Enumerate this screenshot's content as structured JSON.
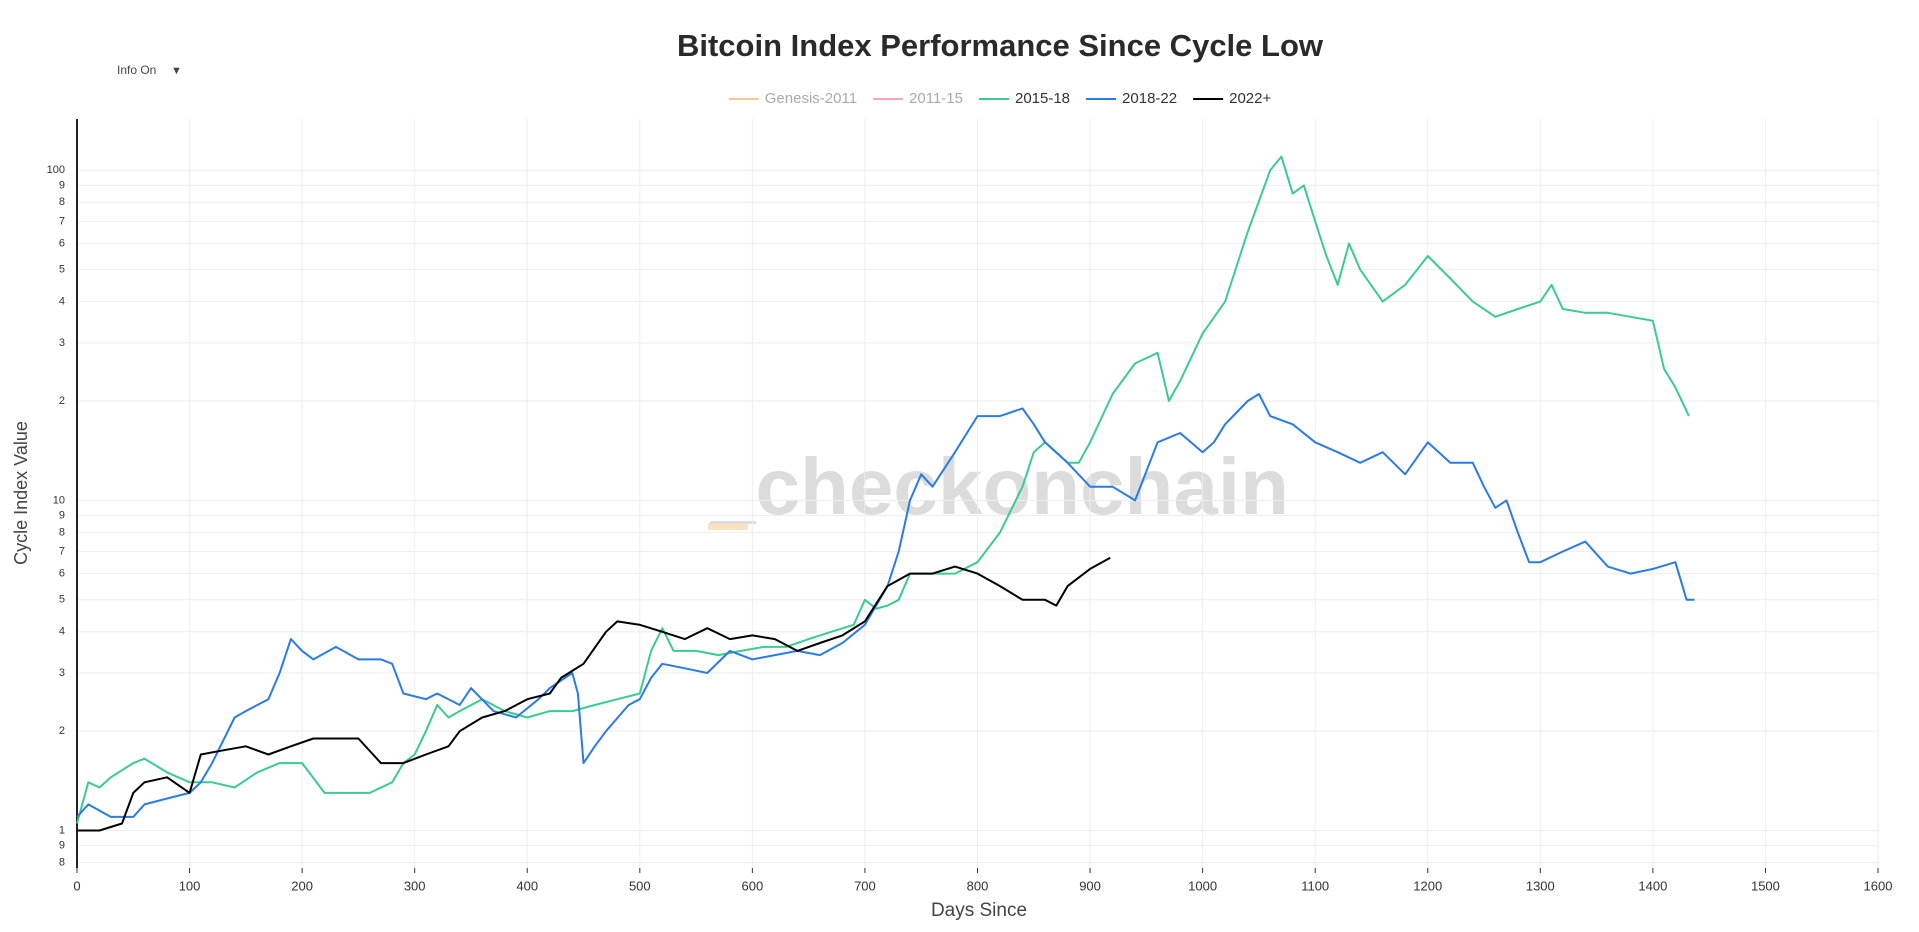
{
  "chart_data": {
    "type": "line",
    "title": "Bitcoin Index Performance Since Cycle Low",
    "control_label": "Info On",
    "control_icon": "▼",
    "watermark": "_checkonchain",
    "x_label": "Days Since",
    "y_label": "Cycle Index Value",
    "xlim": [
      0,
      1600
    ],
    "xticks": [
      0,
      100,
      200,
      300,
      400,
      500,
      600,
      700,
      800,
      900,
      1000,
      1100,
      1200,
      1300,
      1400,
      1500,
      1600
    ],
    "ylim": [
      0.77,
      143
    ],
    "log_y": true,
    "grid": true,
    "legend": "top",
    "yticks": [
      {
        "value": 0.8,
        "label": "8"
      },
      {
        "value": 0.9,
        "label": "9"
      },
      1,
      2,
      3,
      4,
      5,
      6,
      7,
      8,
      9,
      10,
      {
        "value": 20,
        "label": "2"
      },
      {
        "value": 30,
        "label": "3"
      },
      {
        "value": 40,
        "label": "4"
      },
      {
        "value": 50,
        "label": "5"
      },
      {
        "value": 60,
        "label": "6"
      },
      {
        "value": 70,
        "label": "7"
      },
      {
        "value": 80,
        "label": "8"
      },
      {
        "value": 90,
        "label": "9"
      },
      100
    ],
    "series": [
      {
        "name": "Genesis-2011",
        "color": "#f8c98e",
        "visible": false,
        "x": [],
        "values": []
      },
      {
        "name": "2011-15",
        "color": "#f4a6b8",
        "visible": false,
        "x": [],
        "values": []
      },
      {
        "name": "2015-18",
        "color": "#3ccb8e",
        "visible": true,
        "x": [
          0,
          10,
          20,
          30,
          50,
          60,
          80,
          100,
          120,
          140,
          160,
          180,
          200,
          220,
          240,
          260,
          280,
          290,
          300,
          310,
          320,
          330,
          340,
          360,
          380,
          400,
          420,
          440,
          460,
          480,
          500,
          510,
          520,
          530,
          550,
          570,
          590,
          610,
          630,
          650,
          670,
          690,
          700,
          710,
          720,
          730,
          740,
          760,
          780,
          800,
          820,
          840,
          850,
          860,
          870,
          880,
          890,
          900,
          920,
          940,
          960,
          970,
          980,
          1000,
          1020,
          1040,
          1060,
          1070,
          1080,
          1090,
          1100,
          1110,
          1120,
          1130,
          1140,
          1160,
          1180,
          1200,
          1220,
          1240,
          1260,
          1280,
          1300,
          1310,
          1320,
          1340,
          1360,
          1380,
          1400,
          1410,
          1420,
          1432
        ],
        "values": [
          1.05,
          1.4,
          1.35,
          1.45,
          1.6,
          1.65,
          1.5,
          1.4,
          1.4,
          1.35,
          1.5,
          1.6,
          1.6,
          1.3,
          1.3,
          1.3,
          1.4,
          1.6,
          1.7,
          2.0,
          2.4,
          2.2,
          2.3,
          2.5,
          2.3,
          2.2,
          2.3,
          2.3,
          2.4,
          2.5,
          2.6,
          3.5,
          4.1,
          3.5,
          3.5,
          3.4,
          3.5,
          3.6,
          3.6,
          3.8,
          4.0,
          4.2,
          5.0,
          4.7,
          4.8,
          5.0,
          6.0,
          6.0,
          6.0,
          6.5,
          8,
          11,
          14,
          15,
          14,
          13,
          13,
          15,
          21,
          26,
          28,
          20,
          23,
          32,
          40,
          65,
          100,
          110,
          85,
          90,
          70,
          55,
          45,
          60,
          50,
          40,
          45,
          55,
          47,
          40,
          36,
          38,
          40,
          45,
          38,
          37,
          37,
          36,
          35,
          25,
          22,
          18
        ]
      },
      {
        "name": "2018-22",
        "color": "#2b7be4",
        "visible": true,
        "x": [
          0,
          10,
          30,
          50,
          60,
          80,
          100,
          110,
          120,
          140,
          150,
          170,
          180,
          190,
          200,
          210,
          230,
          250,
          270,
          280,
          290,
          310,
          320,
          340,
          350,
          370,
          390,
          410,
          420,
          440,
          445,
          450,
          460,
          470,
          490,
          500,
          510,
          520,
          540,
          560,
          580,
          600,
          620,
          640,
          660,
          680,
          700,
          720,
          730,
          740,
          750,
          760,
          780,
          800,
          820,
          840,
          850,
          860,
          880,
          900,
          920,
          940,
          960,
          980,
          1000,
          1010,
          1020,
          1040,
          1050,
          1060,
          1080,
          1100,
          1120,
          1140,
          1160,
          1180,
          1200,
          1220,
          1240,
          1250,
          1260,
          1270,
          1280,
          1290,
          1300,
          1320,
          1340,
          1360,
          1380,
          1400,
          1420,
          1430,
          1437
        ],
        "values": [
          1.1,
          1.2,
          1.1,
          1.1,
          1.2,
          1.25,
          1.3,
          1.4,
          1.6,
          2.2,
          2.3,
          2.5,
          3.0,
          3.8,
          3.5,
          3.3,
          3.6,
          3.3,
          3.3,
          3.2,
          2.6,
          2.5,
          2.6,
          2.4,
          2.7,
          2.3,
          2.2,
          2.5,
          2.7,
          3.0,
          2.6,
          1.6,
          1.8,
          2.0,
          2.4,
          2.5,
          2.9,
          3.2,
          3.1,
          3.0,
          3.5,
          3.3,
          3.4,
          3.5,
          3.4,
          3.7,
          4.2,
          5.5,
          7,
          10,
          12,
          11,
          14,
          18,
          18,
          19,
          17,
          15,
          13,
          11,
          11,
          10,
          15,
          16,
          14,
          15,
          17,
          20,
          21,
          18,
          17,
          15,
          14,
          13,
          14,
          12,
          15,
          13,
          13,
          11,
          9.5,
          10,
          8,
          6.5,
          6.5,
          7,
          7.5,
          6.3,
          6,
          6.2,
          6.5,
          5,
          5
        ]
      },
      {
        "name": "2022+",
        "color": "#000000",
        "visible": true,
        "x": [
          0,
          20,
          40,
          50,
          60,
          80,
          100,
          110,
          130,
          150,
          170,
          190,
          210,
          230,
          250,
          270,
          290,
          310,
          330,
          340,
          360,
          380,
          400,
          420,
          430,
          450,
          470,
          480,
          500,
          520,
          540,
          560,
          580,
          600,
          620,
          640,
          660,
          680,
          700,
          720,
          740,
          760,
          780,
          800,
          820,
          840,
          860,
          870,
          880,
          900,
          918
        ],
        "values": [
          1.0,
          1.0,
          1.05,
          1.3,
          1.4,
          1.45,
          1.3,
          1.7,
          1.75,
          1.8,
          1.7,
          1.8,
          1.9,
          1.9,
          1.9,
          1.6,
          1.6,
          1.7,
          1.8,
          2.0,
          2.2,
          2.3,
          2.5,
          2.6,
          2.9,
          3.2,
          4.0,
          4.3,
          4.2,
          4.0,
          3.8,
          4.1,
          3.8,
          3.9,
          3.8,
          3.5,
          3.7,
          3.9,
          4.3,
          5.5,
          6.0,
          6.0,
          6.3,
          6.0,
          5.5,
          5.0,
          5.0,
          4.8,
          5.5,
          6.2,
          6.7
        ]
      }
    ]
  }
}
